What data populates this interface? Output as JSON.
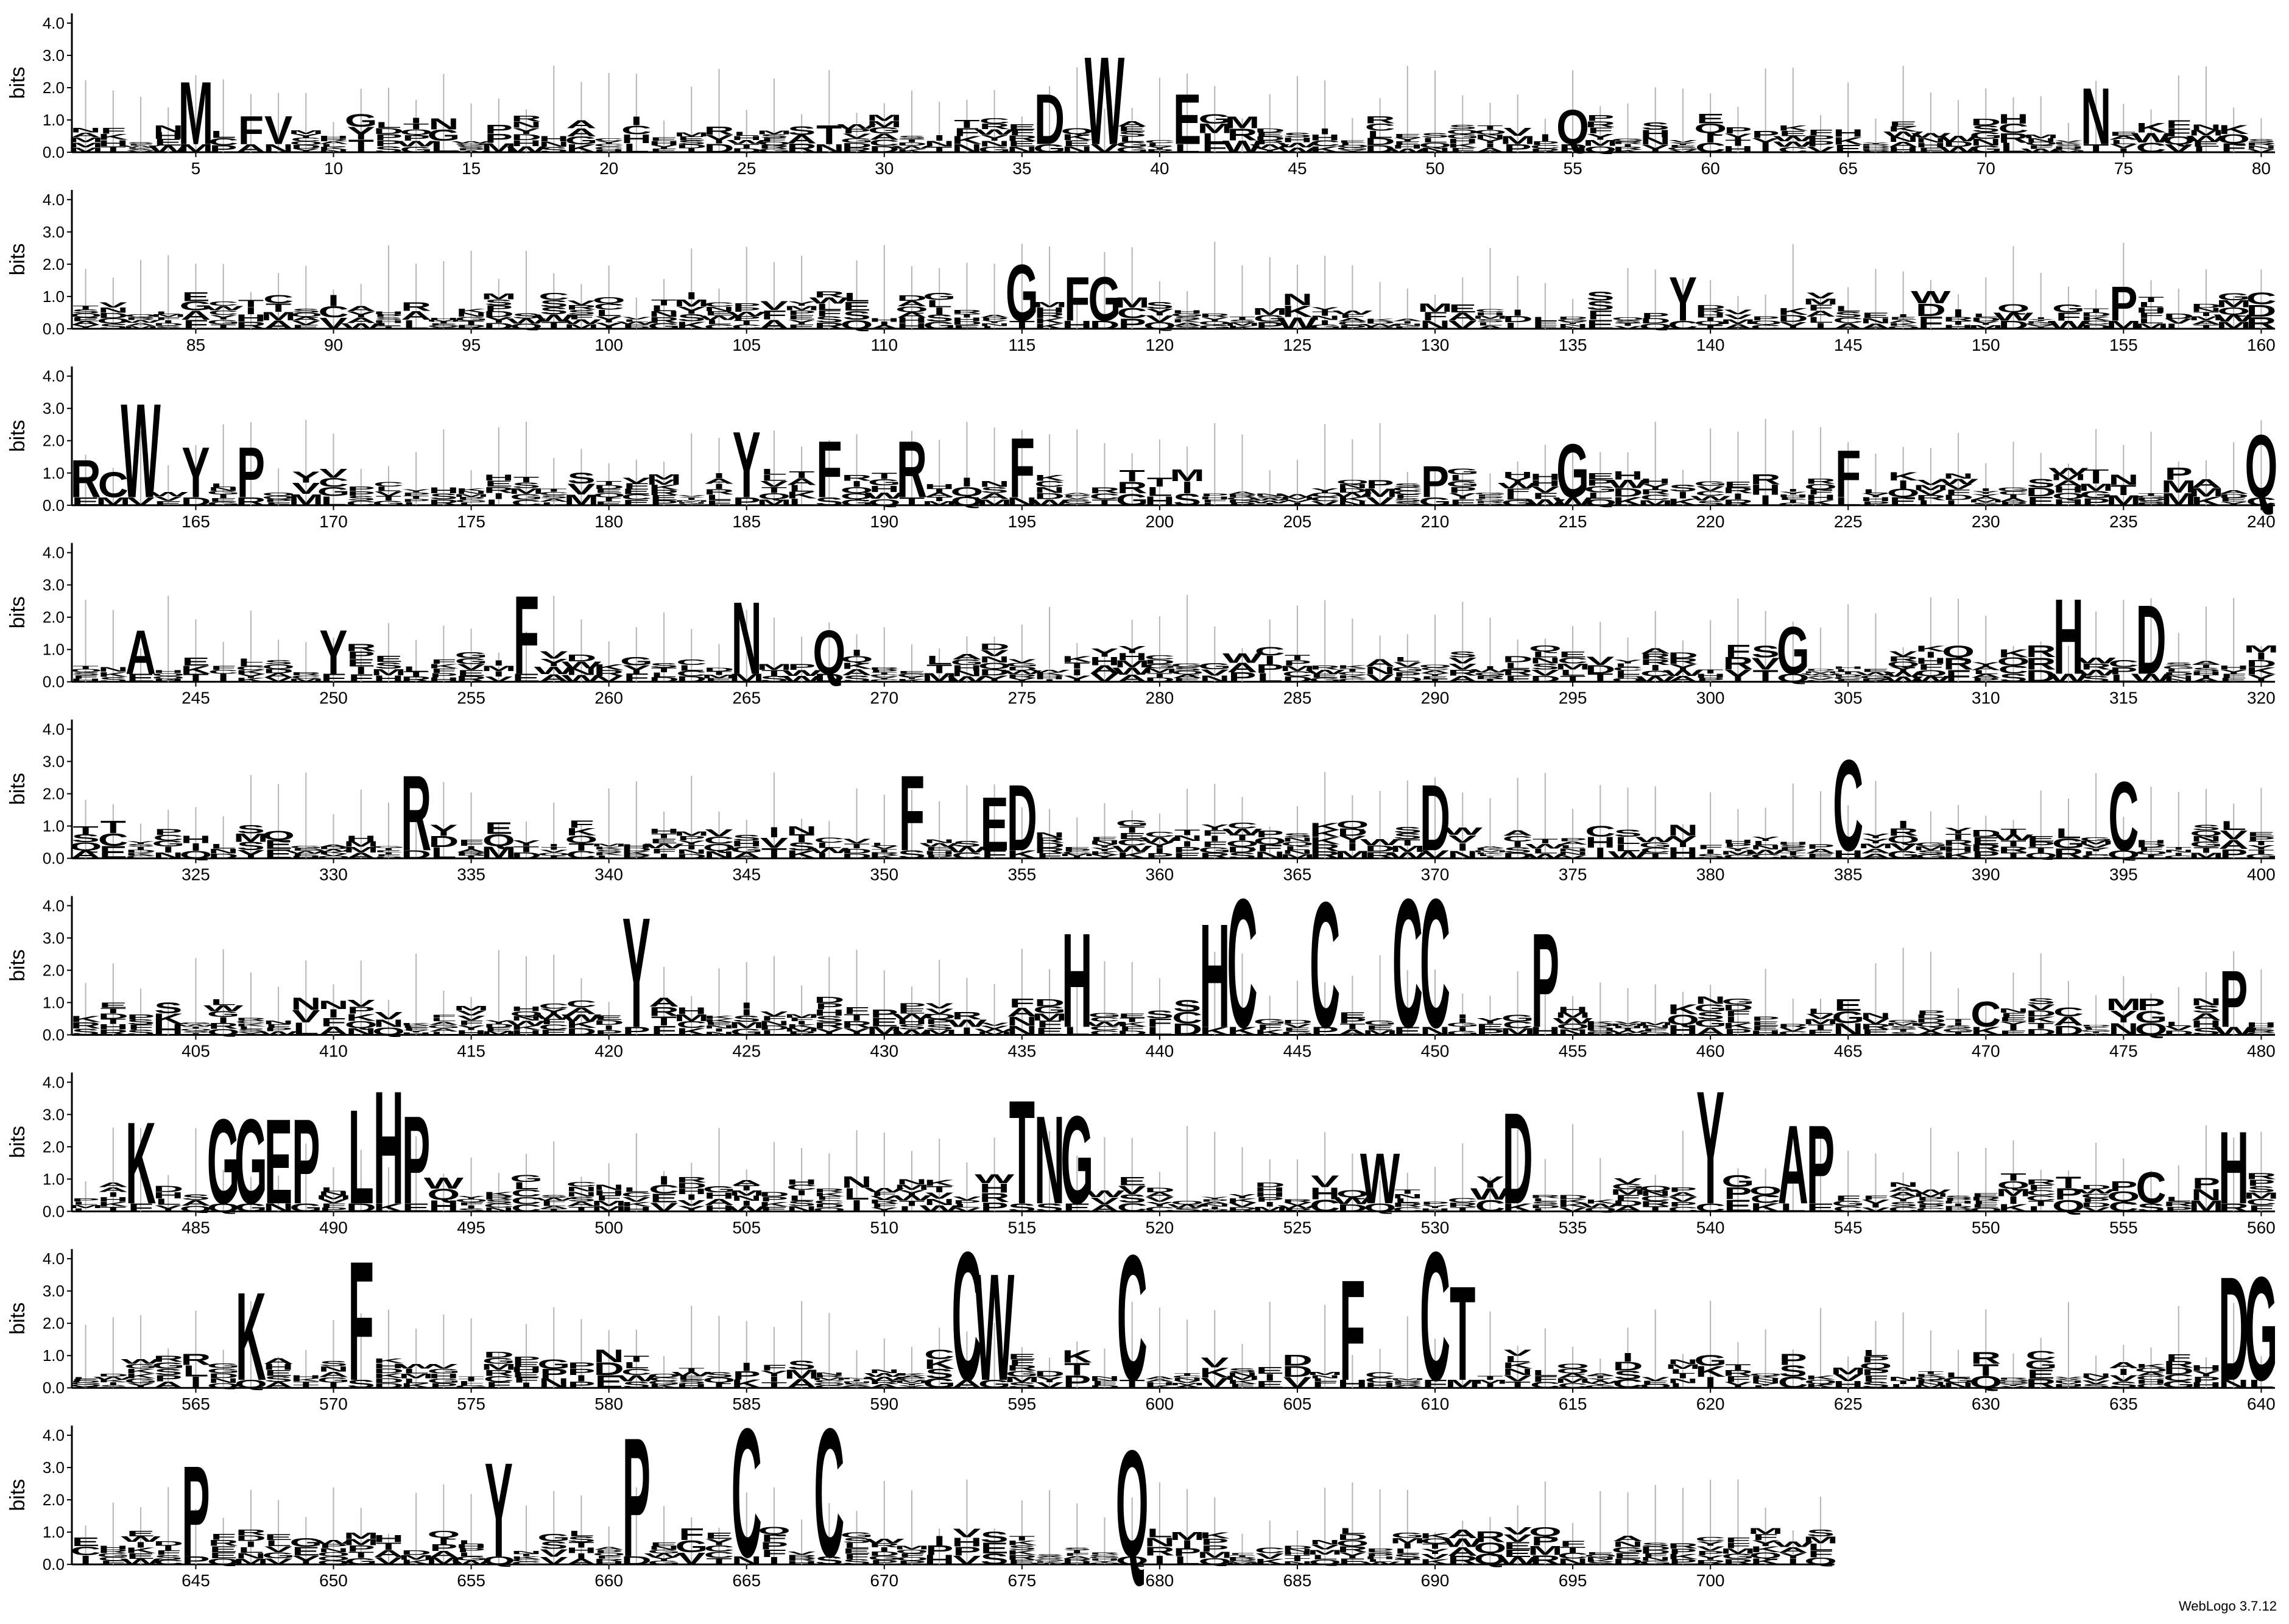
{
  "credit": "WebLogo 3.7.12",
  "colors": {
    "default_residue": "#000000",
    "cysteine": "#e8231f",
    "axis": "#000000",
    "error_bar": "#b5b5b5"
  },
  "chart_data": {
    "type": "sequence-logo",
    "ylabel": "bits",
    "ylim": [
      0,
      4.3
    ],
    "yticks": [
      "0.0",
      "1.0",
      "2.0",
      "3.0",
      "4.0"
    ],
    "positions_per_row": 80,
    "total_positions": 704,
    "xtick_step": 5,
    "residue_colors": {
      "C": "cysteine"
    },
    "prominent_columns": [
      {
        "pos": 5,
        "residues": [
          {
            "aa": "M",
            "bits": 2.0
          }
        ]
      },
      {
        "pos": 7,
        "residues": [
          {
            "aa": "F",
            "bits": 0.9
          }
        ]
      },
      {
        "pos": 8,
        "residues": [
          {
            "aa": "V",
            "bits": 0.9
          }
        ]
      },
      {
        "pos": 28,
        "residues": [
          {
            "aa": "T",
            "bits": 0.6
          }
        ]
      },
      {
        "pos": 36,
        "residues": [
          {
            "aa": "D",
            "bits": 1.6
          }
        ]
      },
      {
        "pos": 38,
        "residues": [
          {
            "aa": "W",
            "bits": 2.8
          }
        ]
      },
      {
        "pos": 41,
        "residues": [
          {
            "aa": "E",
            "bits": 1.6
          }
        ]
      },
      {
        "pos": 55,
        "residues": [
          {
            "aa": "Q",
            "bits": 1.1
          }
        ]
      },
      {
        "pos": 74,
        "residues": [
          {
            "aa": "N",
            "bits": 1.8
          }
        ]
      },
      {
        "pos": 115,
        "residues": [
          {
            "aa": "G",
            "bits": 1.8
          }
        ]
      },
      {
        "pos": 117,
        "residues": [
          {
            "aa": "F",
            "bits": 1.4
          }
        ]
      },
      {
        "pos": 118,
        "residues": [
          {
            "aa": "G",
            "bits": 1.4
          }
        ]
      },
      {
        "pos": 139,
        "residues": [
          {
            "aa": "Y",
            "bits": 1.4
          }
        ]
      },
      {
        "pos": 155,
        "residues": [
          {
            "aa": "P",
            "bits": 1.1
          }
        ]
      },
      {
        "pos": 161,
        "residues": [
          {
            "aa": "R",
            "bits": 1.2
          }
        ]
      },
      {
        "pos": 162,
        "residues": [
          {
            "aa": "C",
            "bits": 0.8
          }
        ]
      },
      {
        "pos": 163,
        "residues": [
          {
            "aa": "W",
            "bits": 3.0
          }
        ]
      },
      {
        "pos": 165,
        "residues": [
          {
            "aa": "Y",
            "bits": 1.6
          }
        ]
      },
      {
        "pos": 167,
        "residues": [
          {
            "aa": "P",
            "bits": 1.6
          }
        ]
      },
      {
        "pos": 185,
        "residues": [
          {
            "aa": "Y",
            "bits": 2.1
          }
        ]
      },
      {
        "pos": 188,
        "residues": [
          {
            "aa": "F",
            "bits": 1.8
          }
        ]
      },
      {
        "pos": 191,
        "residues": [
          {
            "aa": "R",
            "bits": 1.8
          }
        ]
      },
      {
        "pos": 195,
        "residues": [
          {
            "aa": "F",
            "bits": 1.9
          }
        ]
      },
      {
        "pos": 210,
        "residues": [
          {
            "aa": "P",
            "bits": 1.0
          }
        ]
      },
      {
        "pos": 215,
        "residues": [
          {
            "aa": "G",
            "bits": 1.7
          }
        ]
      },
      {
        "pos": 225,
        "residues": [
          {
            "aa": "F",
            "bits": 1.5
          }
        ]
      },
      {
        "pos": 240,
        "residues": [
          {
            "aa": "Q",
            "bits": 2.0
          }
        ]
      },
      {
        "pos": 243,
        "residues": [
          {
            "aa": "A",
            "bits": 1.4
          }
        ]
      },
      {
        "pos": 250,
        "residues": [
          {
            "aa": "Y",
            "bits": 1.4
          }
        ]
      },
      {
        "pos": 257,
        "residues": [
          {
            "aa": "F",
            "bits": 2.5
          }
        ]
      },
      {
        "pos": 265,
        "residues": [
          {
            "aa": "N",
            "bits": 2.3
          }
        ]
      },
      {
        "pos": 268,
        "residues": [
          {
            "aa": "Q",
            "bits": 1.4
          }
        ]
      },
      {
        "pos": 303,
        "residues": [
          {
            "aa": "G",
            "bits": 1.5
          }
        ]
      },
      {
        "pos": 313,
        "residues": [
          {
            "aa": "H",
            "bits": 2.4
          }
        ]
      },
      {
        "pos": 316,
        "residues": [
          {
            "aa": "D",
            "bits": 2.2
          }
        ]
      },
      {
        "pos": 333,
        "residues": [
          {
            "aa": "R",
            "bits": 2.4
          }
        ]
      },
      {
        "pos": 351,
        "residues": [
          {
            "aa": "F",
            "bits": 2.4
          }
        ]
      },
      {
        "pos": 354,
        "residues": [
          {
            "aa": "E",
            "bits": 1.7
          }
        ]
      },
      {
        "pos": 355,
        "residues": [
          {
            "aa": "D",
            "bits": 2.1
          }
        ]
      },
      {
        "pos": 370,
        "residues": [
          {
            "aa": "D",
            "bits": 2.1
          }
        ]
      },
      {
        "pos": 385,
        "residues": [
          {
            "aa": "C",
            "bits": 2.9
          }
        ]
      },
      {
        "pos": 395,
        "residues": [
          {
            "aa": "C",
            "bits": 2.2
          }
        ]
      },
      {
        "pos": 421,
        "residues": [
          {
            "aa": "Y",
            "bits": 3.5
          }
        ]
      },
      {
        "pos": 437,
        "residues": [
          {
            "aa": "H",
            "bits": 3.0
          }
        ]
      },
      {
        "pos": 442,
        "residues": [
          {
            "aa": "H",
            "bits": 3.3
          }
        ]
      },
      {
        "pos": 443,
        "residues": [
          {
            "aa": "C",
            "bits": 4.1
          }
        ]
      },
      {
        "pos": 446,
        "residues": [
          {
            "aa": "C",
            "bits": 4.0
          }
        ]
      },
      {
        "pos": 449,
        "residues": [
          {
            "aa": "C",
            "bits": 4.1
          }
        ]
      },
      {
        "pos": 450,
        "residues": [
          {
            "aa": "C",
            "bits": 4.1
          }
        ]
      },
      {
        "pos": 454,
        "residues": [
          {
            "aa": "P",
            "bits": 3.0
          }
        ]
      },
      {
        "pos": 470,
        "residues": [
          {
            "aa": "C",
            "bits": 0.8
          }
        ]
      },
      {
        "pos": 479,
        "residues": [
          {
            "aa": "P",
            "bits": 1.8
          }
        ]
      },
      {
        "pos": 483,
        "residues": [
          {
            "aa": "K",
            "bits": 2.6
          }
        ]
      },
      {
        "pos": 486,
        "residues": [
          {
            "aa": "G",
            "bits": 2.7
          }
        ]
      },
      {
        "pos": 487,
        "residues": [
          {
            "aa": "G",
            "bits": 2.7
          }
        ]
      },
      {
        "pos": 488,
        "residues": [
          {
            "aa": "E",
            "bits": 2.7
          }
        ]
      },
      {
        "pos": 489,
        "residues": [
          {
            "aa": "P",
            "bits": 2.7
          }
        ]
      },
      {
        "pos": 491,
        "residues": [
          {
            "aa": "L",
            "bits": 3.0
          }
        ]
      },
      {
        "pos": 492,
        "residues": [
          {
            "aa": "H",
            "bits": 3.6
          }
        ]
      },
      {
        "pos": 493,
        "residues": [
          {
            "aa": "P",
            "bits": 2.8
          }
        ]
      },
      {
        "pos": 515,
        "residues": [
          {
            "aa": "T",
            "bits": 3.3
          }
        ]
      },
      {
        "pos": 516,
        "residues": [
          {
            "aa": "N",
            "bits": 2.8
          }
        ]
      },
      {
        "pos": 517,
        "residues": [
          {
            "aa": "G",
            "bits": 2.8
          }
        ]
      },
      {
        "pos": 528,
        "residues": [
          {
            "aa": "W",
            "bits": 1.6
          }
        ]
      },
      {
        "pos": 533,
        "residues": [
          {
            "aa": "D",
            "bits": 2.9
          }
        ]
      },
      {
        "pos": 540,
        "residues": [
          {
            "aa": "Y",
            "bits": 3.6
          }
        ]
      },
      {
        "pos": 543,
        "residues": [
          {
            "aa": "A",
            "bits": 2.5
          }
        ]
      },
      {
        "pos": 544,
        "residues": [
          {
            "aa": "P",
            "bits": 2.5
          }
        ]
      },
      {
        "pos": 556,
        "residues": [
          {
            "aa": "C",
            "bits": 1.0
          }
        ]
      },
      {
        "pos": 559,
        "residues": [
          {
            "aa": "H",
            "bits": 2.3
          }
        ]
      },
      {
        "pos": 567,
        "residues": [
          {
            "aa": "K",
            "bits": 2.8
          }
        ]
      },
      {
        "pos": 571,
        "residues": [
          {
            "aa": "F",
            "bits": 3.8
          }
        ]
      },
      {
        "pos": 593,
        "residues": [
          {
            "aa": "C",
            "bits": 4.1
          }
        ]
      },
      {
        "pos": 594,
        "residues": [
          {
            "aa": "W",
            "bits": 3.4
          }
        ]
      },
      {
        "pos": 599,
        "residues": [
          {
            "aa": "C",
            "bits": 4.0
          }
        ]
      },
      {
        "pos": 607,
        "residues": [
          {
            "aa": "F",
            "bits": 3.2
          }
        ]
      },
      {
        "pos": 610,
        "residues": [
          {
            "aa": "C",
            "bits": 4.1
          }
        ]
      },
      {
        "pos": 611,
        "residues": [
          {
            "aa": "T",
            "bits": 3.0
          }
        ]
      },
      {
        "pos": 639,
        "residues": [
          {
            "aa": "D",
            "bits": 3.3
          }
        ]
      },
      {
        "pos": 640,
        "residues": [
          {
            "aa": "G",
            "bits": 3.3
          }
        ]
      },
      {
        "pos": 645,
        "residues": [
          {
            "aa": "P",
            "bits": 2.9
          }
        ]
      },
      {
        "pos": 656,
        "residues": [
          {
            "aa": "Y",
            "bits": 3.0
          }
        ]
      },
      {
        "pos": 661,
        "residues": [
          {
            "aa": "P",
            "bits": 3.8
          }
        ]
      },
      {
        "pos": 665,
        "residues": [
          {
            "aa": "C",
            "bits": 4.1
          }
        ]
      },
      {
        "pos": 668,
        "residues": [
          {
            "aa": "C",
            "bits": 4.1
          }
        ]
      },
      {
        "pos": 679,
        "residues": [
          {
            "aa": "Q",
            "bits": 3.4
          }
        ]
      }
    ]
  }
}
